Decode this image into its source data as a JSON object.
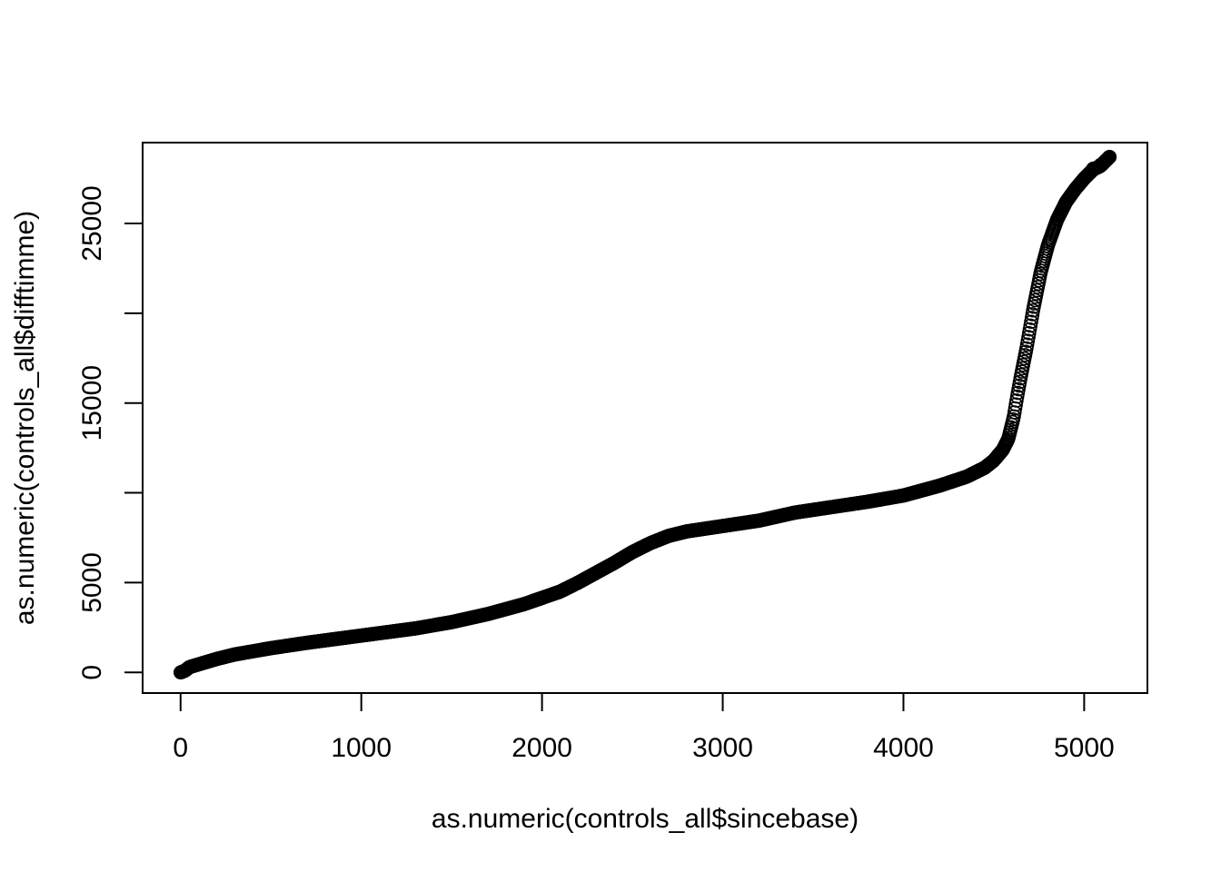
{
  "chart_data": {
    "type": "scatter",
    "title": "",
    "xlabel": "as.numeric(controls_all$sincebase)",
    "ylabel": "as.numeric(controls_all$difftimme)",
    "xlim": [
      -210,
      5350
    ],
    "ylim": [
      -1150,
      29500
    ],
    "grid": false,
    "legend": "none",
    "x_ticks": [
      0,
      1000,
      2000,
      3000,
      4000,
      5000
    ],
    "x_tick_labels": [
      "0",
      "1000",
      "2000",
      "3000",
      "4000",
      "5000"
    ],
    "y_ticks": [
      0,
      5000,
      10000,
      15000,
      20000,
      25000
    ],
    "y_tick_labels": [
      "0",
      "5000",
      "",
      "15000",
      "",
      "25000"
    ],
    "marker": "open-circle",
    "marker_color": "#000000",
    "n_points": 5135,
    "curve_points": [
      [
        0,
        0
      ],
      [
        25,
        100
      ],
      [
        50,
        300
      ],
      [
        100,
        450
      ],
      [
        200,
        750
      ],
      [
        300,
        1000
      ],
      [
        500,
        1350
      ],
      [
        700,
        1650
      ],
      [
        1000,
        2050
      ],
      [
        1300,
        2450
      ],
      [
        1500,
        2800
      ],
      [
        1700,
        3250
      ],
      [
        1900,
        3800
      ],
      [
        2100,
        4500
      ],
      [
        2200,
        5000
      ],
      [
        2300,
        5550
      ],
      [
        2400,
        6100
      ],
      [
        2500,
        6700
      ],
      [
        2600,
        7200
      ],
      [
        2700,
        7600
      ],
      [
        2800,
        7850
      ],
      [
        3000,
        8150
      ],
      [
        3200,
        8450
      ],
      [
        3400,
        8900
      ],
      [
        3600,
        9200
      ],
      [
        3800,
        9500
      ],
      [
        4000,
        9850
      ],
      [
        4200,
        10400
      ],
      [
        4350,
        10900
      ],
      [
        4450,
        11400
      ],
      [
        4500,
        11800
      ],
      [
        4550,
        12400
      ],
      [
        4580,
        13000
      ],
      [
        4610,
        14200
      ],
      [
        4630,
        15400
      ],
      [
        4650,
        16500
      ],
      [
        4680,
        18000
      ],
      [
        4720,
        20300
      ],
      [
        4760,
        22300
      ],
      [
        4800,
        23800
      ],
      [
        4850,
        25200
      ],
      [
        4900,
        26200
      ],
      [
        4950,
        26900
      ],
      [
        5000,
        27500
      ],
      [
        5050,
        28000
      ],
      [
        5090,
        28200
      ],
      [
        5140,
        28700
      ]
    ]
  }
}
